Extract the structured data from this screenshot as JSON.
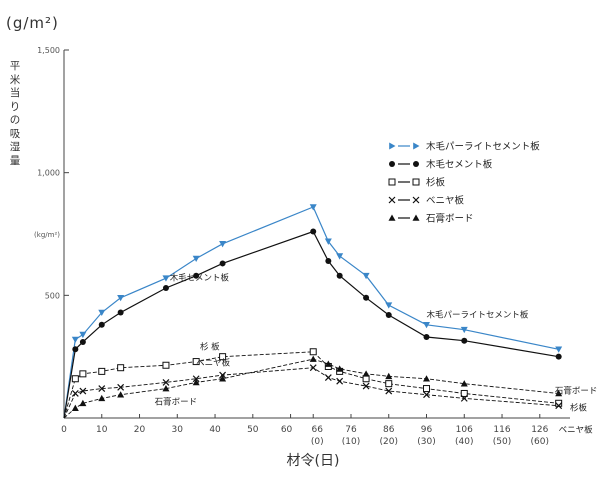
{
  "chart_data": {
    "type": "line",
    "y_unit": "(g/m²)",
    "ylabel": "平米当りの吸湿量",
    "xlabel": "材令(日)",
    "ylim": [
      0,
      1500
    ],
    "yticks": [
      {
        "v": 0,
        "label": "0"
      },
      {
        "v": 500,
        "label": "500"
      },
      {
        "v": 1000,
        "label": "1,000"
      },
      {
        "v": 1500,
        "label": "1,500"
      }
    ],
    "xlim": [
      0,
      134
    ],
    "xticks": [
      {
        "v": 0,
        "label": "0"
      },
      {
        "v": 10,
        "label": "10"
      },
      {
        "v": 20,
        "label": "20"
      },
      {
        "v": 30,
        "label": "30"
      },
      {
        "v": 40,
        "label": "40"
      },
      {
        "v": 50,
        "label": "50"
      },
      {
        "v": 60,
        "label": "60"
      },
      {
        "v": 66,
        "label": "66"
      },
      {
        "v": 76,
        "label": "76"
      },
      {
        "v": 86,
        "label": "86"
      },
      {
        "v": 96,
        "label": "96"
      },
      {
        "v": 106,
        "label": "106"
      },
      {
        "v": 116,
        "label": "116"
      },
      {
        "v": 126,
        "label": "126"
      }
    ],
    "xticks_sub": [
      {
        "v": 66,
        "label": "(0)"
      },
      {
        "v": 76,
        "label": "(10)"
      },
      {
        "v": 86,
        "label": "(20)"
      },
      {
        "v": 96,
        "label": "(30)"
      },
      {
        "v": 106,
        "label": "(40)"
      },
      {
        "v": 116,
        "label": "(50)"
      },
      {
        "v": 126,
        "label": "(60)"
      }
    ],
    "kg_note": "(kg/m²)",
    "series": [
      {
        "name": "木毛パーライトセメント板",
        "color": "#3a86c8",
        "marker": "tri-down",
        "dash": false,
        "x": [
          0,
          3,
          5,
          10,
          15,
          27,
          35,
          42,
          66,
          70,
          73,
          80,
          86,
          96,
          106,
          131
        ],
        "y": [
          0,
          320,
          340,
          430,
          490,
          570,
          650,
          710,
          860,
          720,
          660,
          580,
          460,
          380,
          360,
          280
        ]
      },
      {
        "name": "木毛セメント板",
        "color": "#111111",
        "marker": "circle",
        "dash": false,
        "x": [
          0,
          3,
          5,
          10,
          15,
          27,
          35,
          42,
          66,
          70,
          73,
          80,
          86,
          96,
          106,
          131
        ],
        "y": [
          0,
          280,
          310,
          380,
          430,
          530,
          580,
          630,
          760,
          640,
          580,
          490,
          420,
          330,
          315,
          250
        ]
      },
      {
        "name": "杉板",
        "color": "#111111",
        "marker": "square",
        "dash": true,
        "x": [
          0,
          3,
          5,
          10,
          15,
          27,
          35,
          42,
          66,
          70,
          73,
          80,
          86,
          96,
          106,
          131
        ],
        "y": [
          0,
          160,
          180,
          190,
          205,
          215,
          230,
          250,
          270,
          210,
          190,
          160,
          140,
          120,
          100,
          60
        ]
      },
      {
        "name": "ベニヤ板",
        "color": "#111111",
        "marker": "cross",
        "dash": true,
        "x": [
          0,
          3,
          5,
          10,
          15,
          27,
          35,
          42,
          66,
          70,
          73,
          80,
          86,
          96,
          106,
          131
        ],
        "y": [
          0,
          100,
          110,
          120,
          125,
          145,
          160,
          175,
          205,
          165,
          150,
          130,
          110,
          95,
          80,
          50
        ]
      },
      {
        "name": "石膏ボード",
        "color": "#111111",
        "marker": "tri-up",
        "dash": true,
        "x": [
          0,
          3,
          5,
          10,
          15,
          27,
          35,
          42,
          66,
          70,
          73,
          80,
          86,
          96,
          106,
          131
        ],
        "y": [
          0,
          40,
          60,
          80,
          95,
          120,
          145,
          160,
          240,
          220,
          200,
          180,
          170,
          160,
          140,
          100
        ]
      }
    ],
    "annotations": [
      {
        "text": "木毛セメント板",
        "series": 1,
        "x": 28,
        "y": 560
      },
      {
        "text": "木毛パーライトセメント板",
        "series": 0,
        "x": 96,
        "y": 410
      },
      {
        "text": "杉  板",
        "series": 2,
        "x": 36,
        "y": 280
      },
      {
        "text": "ベニヤ板",
        "series": 3,
        "x": 35,
        "y": 215
      },
      {
        "text": "石膏ボード",
        "series": 4,
        "x": 24,
        "y": 55
      },
      {
        "text": "石膏ボード",
        "series": 4,
        "x": 130,
        "y": 100
      },
      {
        "text": "杉板",
        "series": 2,
        "x": 134,
        "y": 30
      },
      {
        "text": "ベニヤ板",
        "series": 3,
        "x": 131,
        "y": -60
      }
    ],
    "legend_position": "right"
  }
}
